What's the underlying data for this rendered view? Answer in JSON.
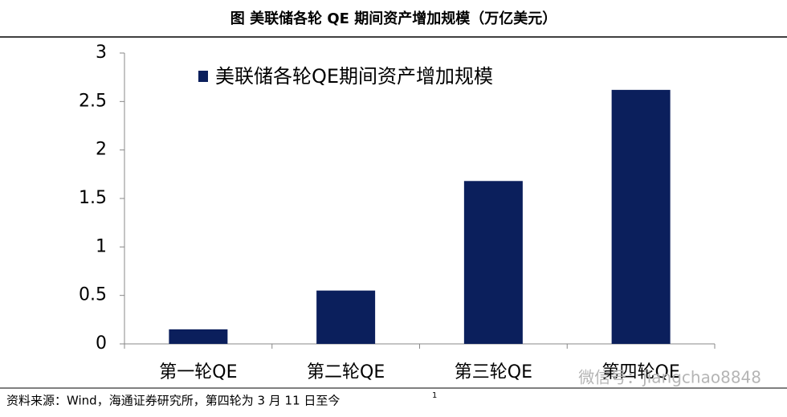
{
  "chart_data": {
    "type": "bar",
    "title": "图  美联储各轮 QE 期间资产增加规模（万亿美元）",
    "categories": [
      "第一轮QE",
      "第二轮QE",
      "第三轮QE",
      "第四轮QE"
    ],
    "series": [
      {
        "name": "美联储各轮QE期间资产增加规模",
        "color": "#0b1f5c",
        "values": [
          0.15,
          0.55,
          1.68,
          2.62
        ]
      }
    ],
    "ylim": [
      0,
      3
    ],
    "yticks": [
      0,
      0.5,
      1,
      1.5,
      2,
      2.5,
      3
    ],
    "grid": false,
    "source": "资料来源：Wind，海通证券研究所，第四轮为 3 月 11 日至今",
    "source_note": "1",
    "watermark": "微信号：jiangchao8848"
  }
}
